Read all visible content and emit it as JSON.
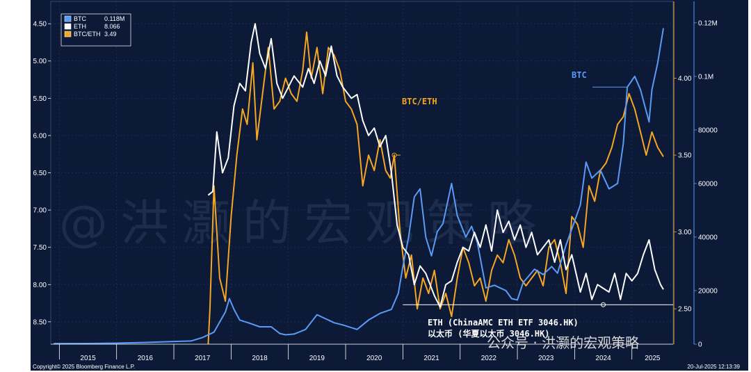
{
  "chart_data": {
    "type": "line",
    "x_labels": [
      "2015",
      "2016",
      "2017",
      "2018",
      "2019",
      "2020",
      "2021",
      "2022",
      "2023",
      "2024",
      "2025"
    ],
    "left_axis": {
      "ticks": [
        "4.50",
        "5.00",
        "5.50",
        "6.00",
        "6.50",
        "7.00",
        "7.50",
        "8.00",
        "8.50"
      ],
      "range": [
        4.2,
        8.8
      ],
      "inverted": true
    },
    "ratio_axis": {
      "ticks": [
        "4.00",
        "3.50",
        "3.00",
        "2.50"
      ],
      "range": [
        2.27,
        4.5
      ]
    },
    "price_axis": {
      "ticks": [
        "0.12M",
        "0.1M",
        "80000",
        "60000",
        "40000",
        "20000",
        "0"
      ],
      "range": [
        0,
        128000
      ]
    },
    "legend": [
      {
        "name": "BTC",
        "value": "0.118M",
        "color": "#5b9bf5"
      },
      {
        "name": "ETH",
        "value": "8.066",
        "color": "#ffffff"
      },
      {
        "name": "BTC/ETH",
        "value": "3.49",
        "color": "#f5a623"
      }
    ],
    "series": [
      {
        "name": "BTC",
        "axis": "price",
        "color": "#5b9bf5",
        "points": [
          [
            2014.9,
            230
          ],
          [
            2015.5,
            260
          ],
          [
            2016.0,
            400
          ],
          [
            2016.5,
            650
          ],
          [
            2017.0,
            1000
          ],
          [
            2017.3,
            1200
          ],
          [
            2017.5,
            2500
          ],
          [
            2017.7,
            4500
          ],
          [
            2017.9,
            12000
          ],
          [
            2017.97,
            17000
          ],
          [
            2018.05,
            13000
          ],
          [
            2018.15,
            9000
          ],
          [
            2018.3,
            8000
          ],
          [
            2018.5,
            6500
          ],
          [
            2018.7,
            6500
          ],
          [
            2018.85,
            4000
          ],
          [
            2018.95,
            3500
          ],
          [
            2019.1,
            3800
          ],
          [
            2019.3,
            5500
          ],
          [
            2019.5,
            11000
          ],
          [
            2019.6,
            10000
          ],
          [
            2019.8,
            8000
          ],
          [
            2019.95,
            7200
          ],
          [
            2020.2,
            5500
          ],
          [
            2020.4,
            9000
          ],
          [
            2020.6,
            11500
          ],
          [
            2020.8,
            13000
          ],
          [
            2020.92,
            19000
          ],
          [
            2021.0,
            29000
          ],
          [
            2021.1,
            40000
          ],
          [
            2021.2,
            55000
          ],
          [
            2021.3,
            58000
          ],
          [
            2021.4,
            40000
          ],
          [
            2021.5,
            33000
          ],
          [
            2021.6,
            42000
          ],
          [
            2021.7,
            45000
          ],
          [
            2021.85,
            60000
          ],
          [
            2021.95,
            48000
          ],
          [
            2022.1,
            40000
          ],
          [
            2022.2,
            44000
          ],
          [
            2022.3,
            38000
          ],
          [
            2022.45,
            21000
          ],
          [
            2022.6,
            22000
          ],
          [
            2022.8,
            20000
          ],
          [
            2022.9,
            17000
          ],
          [
            2023.0,
            16500
          ],
          [
            2023.1,
            23000
          ],
          [
            2023.3,
            28000
          ],
          [
            2023.45,
            26000
          ],
          [
            2023.6,
            29000
          ],
          [
            2023.7,
            26500
          ],
          [
            2023.85,
            37000
          ],
          [
            2023.95,
            43000
          ],
          [
            2024.1,
            52000
          ],
          [
            2024.2,
            68000
          ],
          [
            2024.3,
            62000
          ],
          [
            2024.45,
            65000
          ],
          [
            2024.6,
            58000
          ],
          [
            2024.75,
            60000
          ],
          [
            2024.85,
            75000
          ],
          [
            2024.92,
            96000
          ],
          [
            2025.05,
            100000
          ],
          [
            2025.15,
            95000
          ],
          [
            2025.3,
            83000
          ],
          [
            2025.35,
            95000
          ],
          [
            2025.45,
            105000
          ],
          [
            2025.55,
            118000
          ]
        ]
      },
      {
        "name": "ETH",
        "axis": "left",
        "color": "#ffffff",
        "points": [
          [
            2017.6,
            6.8
          ],
          [
            2017.68,
            6.75
          ],
          [
            2017.75,
            5.95
          ],
          [
            2017.85,
            6.5
          ],
          [
            2017.95,
            6.3
          ],
          [
            2018.05,
            5.6
          ],
          [
            2018.15,
            5.3
          ],
          [
            2018.25,
            5.4
          ],
          [
            2018.35,
            4.75
          ],
          [
            2018.42,
            4.5
          ],
          [
            2018.5,
            4.9
          ],
          [
            2018.6,
            5.1
          ],
          [
            2018.7,
            4.7
          ],
          [
            2018.8,
            5.3
          ],
          [
            2018.9,
            5.5
          ],
          [
            2019.0,
            5.35
          ],
          [
            2019.1,
            5.2
          ],
          [
            2019.25,
            5.35
          ],
          [
            2019.35,
            5.1
          ],
          [
            2019.45,
            5.3
          ],
          [
            2019.55,
            5.0
          ],
          [
            2019.65,
            5.2
          ],
          [
            2019.75,
            4.8
          ],
          [
            2019.85,
            5.2
          ],
          [
            2019.95,
            5.35
          ],
          [
            2020.1,
            5.5
          ],
          [
            2020.2,
            5.45
          ],
          [
            2020.3,
            5.8
          ],
          [
            2020.4,
            6.0
          ],
          [
            2020.5,
            5.9
          ],
          [
            2020.6,
            6.15
          ],
          [
            2020.7,
            6.0
          ],
          [
            2020.8,
            6.5
          ],
          [
            2020.9,
            7.2
          ],
          [
            2021.0,
            7.5
          ],
          [
            2021.1,
            7.6
          ],
          [
            2021.2,
            8.0
          ],
          [
            2021.3,
            7.75
          ],
          [
            2021.4,
            7.85
          ],
          [
            2021.55,
            8.15
          ],
          [
            2021.65,
            8.3
          ],
          [
            2021.75,
            8.0
          ],
          [
            2021.85,
            7.95
          ],
          [
            2021.95,
            7.7
          ],
          [
            2022.05,
            7.5
          ],
          [
            2022.15,
            7.55
          ],
          [
            2022.25,
            7.3
          ],
          [
            2022.35,
            7.5
          ],
          [
            2022.45,
            7.2
          ],
          [
            2022.55,
            7.55
          ],
          [
            2022.65,
            7.0
          ],
          [
            2022.75,
            7.3
          ],
          [
            2022.85,
            7.15
          ],
          [
            2022.95,
            7.4
          ],
          [
            2023.05,
            7.2
          ],
          [
            2023.15,
            7.5
          ],
          [
            2023.25,
            7.3
          ],
          [
            2023.35,
            7.6
          ],
          [
            2023.45,
            7.5
          ],
          [
            2023.55,
            7.4
          ],
          [
            2023.65,
            7.7
          ],
          [
            2023.75,
            7.4
          ],
          [
            2023.85,
            7.8
          ],
          [
            2023.95,
            7.6
          ],
          [
            2024.1,
            8.1
          ],
          [
            2024.2,
            7.85
          ],
          [
            2024.3,
            8.2
          ],
          [
            2024.4,
            8.0
          ],
          [
            2024.5,
            8.05
          ],
          [
            2024.6,
            8.1
          ],
          [
            2024.7,
            7.85
          ],
          [
            2024.8,
            8.2
          ],
          [
            2024.9,
            7.85
          ],
          [
            2025.0,
            7.95
          ],
          [
            2025.1,
            7.85
          ],
          [
            2025.2,
            7.6
          ],
          [
            2025.3,
            7.4
          ],
          [
            2025.4,
            7.8
          ],
          [
            2025.5,
            8.0
          ],
          [
            2025.55,
            8.066
          ]
        ]
      },
      {
        "name": "BTC/ETH",
        "axis": "ratio",
        "color": "#f5a623",
        "points": [
          [
            2017.6,
            2.27
          ],
          [
            2017.63,
            2.5
          ],
          [
            2017.7,
            3.3
          ],
          [
            2017.8,
            2.7
          ],
          [
            2017.9,
            2.55
          ],
          [
            2018.0,
            3.1
          ],
          [
            2018.1,
            3.5
          ],
          [
            2018.2,
            3.8
          ],
          [
            2018.28,
            3.7
          ],
          [
            2018.38,
            4.1
          ],
          [
            2018.45,
            3.6
          ],
          [
            2018.55,
            3.9
          ],
          [
            2018.65,
            4.2
          ],
          [
            2018.75,
            3.8
          ],
          [
            2018.85,
            3.85
          ],
          [
            2018.95,
            4.0
          ],
          [
            2019.05,
            3.9
          ],
          [
            2019.15,
            3.85
          ],
          [
            2019.25,
            4.05
          ],
          [
            2019.32,
            4.3
          ],
          [
            2019.4,
            4.0
          ],
          [
            2019.5,
            4.2
          ],
          [
            2019.6,
            3.9
          ],
          [
            2019.7,
            4.2
          ],
          [
            2019.8,
            4.15
          ],
          [
            2019.9,
            4.05
          ],
          [
            2020.0,
            3.85
          ],
          [
            2020.1,
            3.8
          ],
          [
            2020.2,
            3.7
          ],
          [
            2020.3,
            3.3
          ],
          [
            2020.4,
            3.5
          ],
          [
            2020.5,
            3.4
          ],
          [
            2020.6,
            3.6
          ],
          [
            2020.7,
            3.4
          ],
          [
            2020.78,
            3.35
          ],
          [
            2020.85,
            3.5
          ],
          [
            2020.95,
            3.0
          ],
          [
            2021.05,
            2.7
          ],
          [
            2021.15,
            2.85
          ],
          [
            2021.25,
            2.5
          ],
          [
            2021.35,
            2.7
          ],
          [
            2021.45,
            2.6
          ],
          [
            2021.55,
            2.75
          ],
          [
            2021.65,
            2.5
          ],
          [
            2021.75,
            2.6
          ],
          [
            2021.85,
            2.45
          ],
          [
            2021.95,
            2.7
          ],
          [
            2022.05,
            2.9
          ],
          [
            2022.15,
            2.8
          ],
          [
            2022.25,
            2.65
          ],
          [
            2022.35,
            2.7
          ],
          [
            2022.45,
            2.55
          ],
          [
            2022.55,
            2.75
          ],
          [
            2022.65,
            2.85
          ],
          [
            2022.75,
            2.8
          ],
          [
            2022.85,
            2.95
          ],
          [
            2022.95,
            2.85
          ],
          [
            2023.05,
            2.7
          ],
          [
            2023.15,
            2.65
          ],
          [
            2023.25,
            2.7
          ],
          [
            2023.35,
            2.75
          ],
          [
            2023.45,
            2.65
          ],
          [
            2023.55,
            2.9
          ],
          [
            2023.65,
            2.95
          ],
          [
            2023.75,
            2.8
          ],
          [
            2023.85,
            2.6
          ],
          [
            2023.95,
            3.1
          ],
          [
            2024.05,
            3.05
          ],
          [
            2024.15,
            2.9
          ],
          [
            2024.25,
            3.3
          ],
          [
            2024.35,
            3.2
          ],
          [
            2024.45,
            3.4
          ],
          [
            2024.55,
            3.45
          ],
          [
            2024.65,
            3.55
          ],
          [
            2024.75,
            3.7
          ],
          [
            2024.85,
            3.75
          ],
          [
            2024.95,
            3.9
          ],
          [
            2025.05,
            3.8
          ],
          [
            2025.15,
            3.65
          ],
          [
            2025.25,
            3.5
          ],
          [
            2025.35,
            3.65
          ],
          [
            2025.45,
            3.55
          ],
          [
            2025.55,
            3.49
          ]
        ]
      }
    ]
  },
  "annotations": {
    "btc": "BTC",
    "btc_eth": "BTC/ETH",
    "eth_line1": "ETH (ChinaAMC ETH ETF 3046.HK)",
    "eth_line2": "以太币 (华夏以太币 3046.HK)"
  },
  "watermark": "@洪灏的宏观策略",
  "overlay_watermark": "公众号 · 洪灏的宏观策略",
  "footer": {
    "copyright": "Copyright© 2025 Bloomberg Finance L.P.",
    "timestamp": "20-Jul-2025 12:13:39"
  }
}
